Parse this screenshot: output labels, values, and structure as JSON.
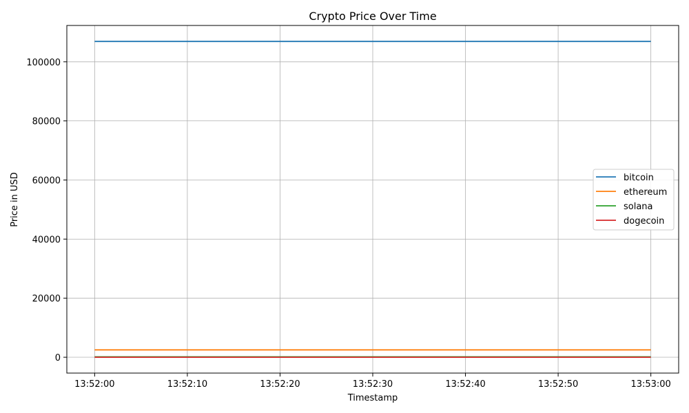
{
  "chart_data": {
    "type": "line",
    "title": "Crypto Price Over Time",
    "xlabel": "Timestamp",
    "ylabel": "Price in USD",
    "x_ticks": [
      "13:52:00",
      "13:52:10",
      "13:52:20",
      "13:52:30",
      "13:52:40",
      "13:52:50",
      "13:53:00"
    ],
    "x": [
      "13:52:00",
      "13:53:00"
    ],
    "xlim": [
      "13:51:57",
      "13:53:03"
    ],
    "y_ticks": [
      0,
      20000,
      40000,
      60000,
      80000,
      100000
    ],
    "y_tick_labels": [
      "0",
      "20000",
      "40000",
      "60000",
      "80000",
      "100000"
    ],
    "ylim": [
      -5350,
      112300
    ],
    "grid": true,
    "legend_position": "center-right",
    "series": [
      {
        "name": "bitcoin",
        "color": "#1f77b4",
        "values": [
          106900,
          106900
        ]
      },
      {
        "name": "ethereum",
        "color": "#ff7f0e",
        "values": [
          2500,
          2500
        ]
      },
      {
        "name": "solana",
        "color": "#2ca02c",
        "values": [
          150,
          150
        ]
      },
      {
        "name": "dogecoin",
        "color": "#d62728",
        "values": [
          0.2,
          0.2
        ]
      }
    ]
  }
}
